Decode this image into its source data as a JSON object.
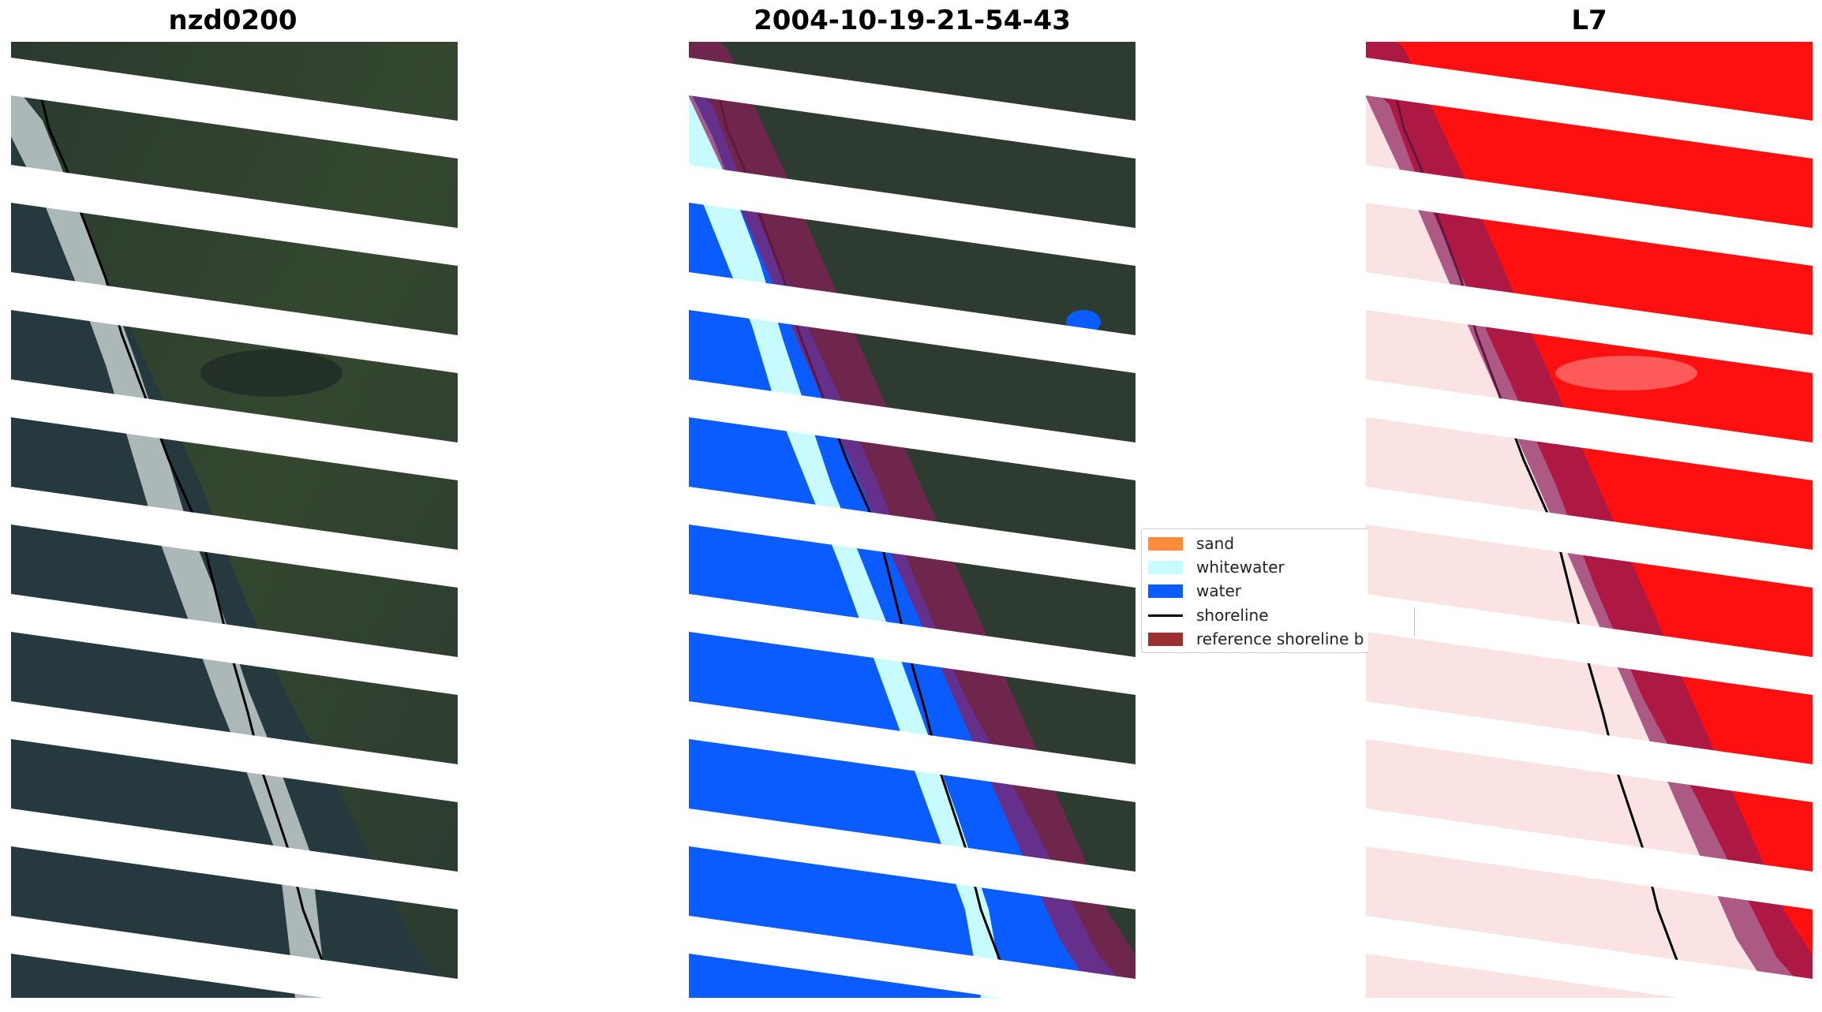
{
  "panels": [
    {
      "title": "nzd0200",
      "view": "rgb"
    },
    {
      "title": "2004-10-19-21-54-43",
      "view": "classified"
    },
    {
      "title": "L7",
      "view": "probability"
    }
  ],
  "legend": {
    "items": [
      {
        "label": "sand",
        "color": "#ff8c3a",
        "kind": "patch"
      },
      {
        "label": "whitewater",
        "color": "#c8fbff",
        "kind": "patch"
      },
      {
        "label": "water",
        "color": "#0a5cff",
        "kind": "patch"
      },
      {
        "label": "shoreline",
        "color": "#000000",
        "kind": "line"
      },
      {
        "label": "reference shoreline b",
        "color": "#9a3030",
        "kind": "patch"
      }
    ]
  },
  "colors": {
    "land": "#2d3b31",
    "ocean": "#24393f",
    "surf": "#d9e2e2",
    "water": "#0a5cff",
    "whitewater": "#c8fbff",
    "buffer": "#8a1e5a",
    "probability_high": "#ff1010",
    "probability_low": "#fbe3e3",
    "gap": "#ffffff"
  }
}
